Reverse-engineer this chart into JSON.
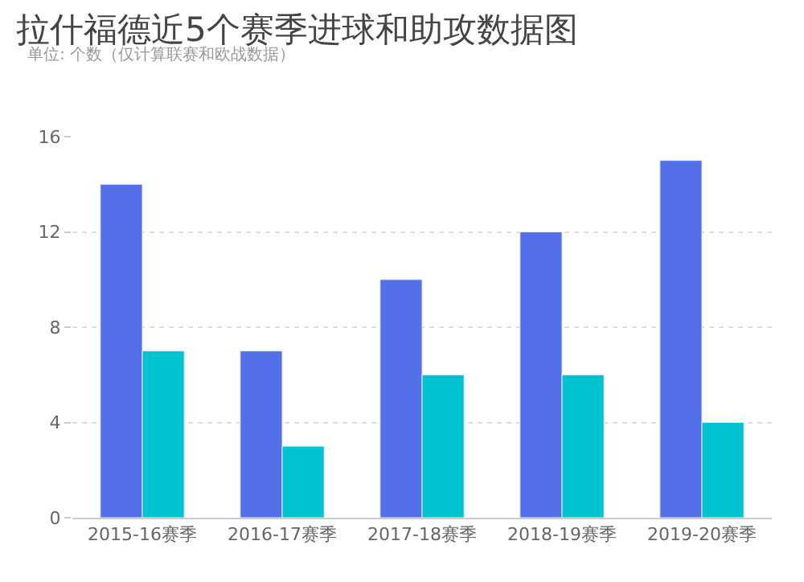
{
  "chart_data": {
    "type": "bar",
    "title": "拉什福德近5个赛季进球和助攻数据图",
    "subtitle": "单位: 个数（仅计算联赛和欧战数据）",
    "categories": [
      "2015-16赛季",
      "2016-17赛季",
      "2017-18赛季",
      "2018-19赛季",
      "2019-20赛季"
    ],
    "series": [
      {
        "color": "#5470e8",
        "values": [
          14,
          7,
          10,
          12,
          15
        ]
      },
      {
        "color": "#00c2d0",
        "values": [
          7,
          3,
          6,
          6,
          4
        ]
      }
    ],
    "ylim": [
      0,
      16
    ],
    "yticks": [
      0,
      4,
      8,
      12,
      16
    ],
    "grid": "y"
  }
}
